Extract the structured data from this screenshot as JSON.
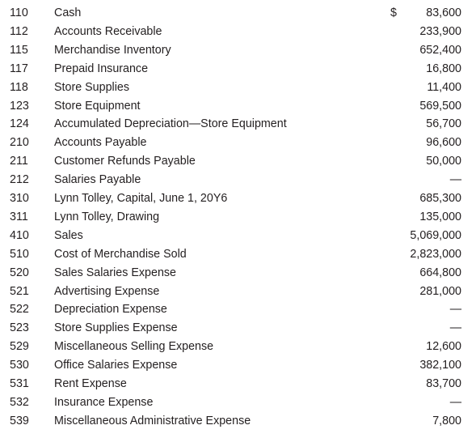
{
  "table": {
    "currency_symbol": "$",
    "rows": [
      [
        "110",
        "Cash",
        "83,600"
      ],
      [
        "112",
        "Accounts Receivable",
        "233,900"
      ],
      [
        "115",
        "Merchandise Inventory",
        "652,400"
      ],
      [
        "117",
        "Prepaid Insurance",
        "16,800"
      ],
      [
        "118",
        "Store Supplies",
        "11,400"
      ],
      [
        "123",
        "Store Equipment",
        "569,500"
      ],
      [
        "124",
        "Accumulated Depreciation—Store Equipment",
        "56,700"
      ],
      [
        "210",
        "Accounts Payable",
        "96,600"
      ],
      [
        "211",
        "Customer Refunds Payable",
        "50,000"
      ],
      [
        "212",
        "Salaries Payable",
        "—"
      ],
      [
        "310",
        "Lynn Tolley, Capital, June 1, 20Y6",
        "685,300"
      ],
      [
        "311",
        "Lynn Tolley, Drawing",
        "135,000"
      ],
      [
        "410",
        "Sales",
        "5,069,000"
      ],
      [
        "510",
        "Cost of Merchandise Sold",
        "2,823,000"
      ],
      [
        "520",
        "Sales Salaries Expense",
        "664,800"
      ],
      [
        "521",
        "Advertising Expense",
        "281,000"
      ],
      [
        "522",
        "Depreciation Expense",
        "—"
      ],
      [
        "523",
        "Store Supplies Expense",
        "—"
      ],
      [
        "529",
        "Miscellaneous Selling Expense",
        "12,600"
      ],
      [
        "530",
        "Office Salaries Expense",
        "382,100"
      ],
      [
        "531",
        "Rent Expense",
        "83,700"
      ],
      [
        "532",
        "Insurance Expense",
        "—"
      ],
      [
        "539",
        "Miscellaneous Administrative Expense",
        "7,800"
      ]
    ]
  }
}
